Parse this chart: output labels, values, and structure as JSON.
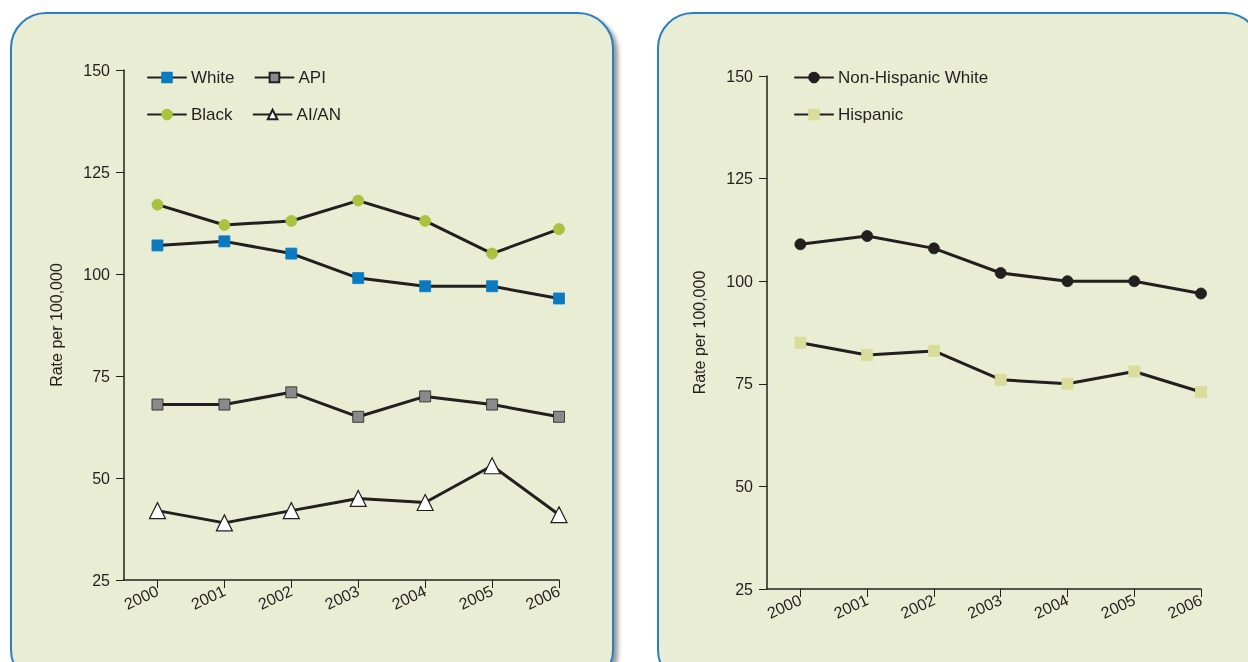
{
  "chart_data": [
    {
      "type": "line",
      "ylabel": "Rate per 100,000",
      "x": [
        2000,
        2001,
        2002,
        2003,
        2004,
        2005,
        2006
      ],
      "xlim": [
        1999.5,
        2006
      ],
      "xticks": [
        2000,
        2001,
        2002,
        2003,
        2004,
        2005,
        2006
      ],
      "ylim": [
        25,
        150
      ],
      "yticks": [
        25,
        50,
        75,
        100,
        125,
        150
      ],
      "grid": false,
      "legend": "top left",
      "line_style": "solid",
      "series": [
        {
          "name": "White",
          "color": "#0a7bc1",
          "marker": "square",
          "values": [
            107,
            108,
            105,
            99,
            97,
            97,
            94
          ]
        },
        {
          "name": "API",
          "color": "#8a8a8a",
          "marker": "square",
          "values": [
            68,
            68,
            71,
            65,
            70,
            68,
            65
          ]
        },
        {
          "name": "Black",
          "color": "#a9c23f",
          "marker": "circle",
          "values": [
            117,
            112,
            113,
            118,
            113,
            105,
            111
          ]
        },
        {
          "name": "AI/AN",
          "color": "#ffffff",
          "marker": "triangle",
          "values": [
            42,
            39,
            42,
            45,
            44,
            53,
            41
          ]
        }
      ]
    },
    {
      "type": "line",
      "ylabel": "Rate per 100,000",
      "x": [
        2000,
        2001,
        2002,
        2003,
        2004,
        2005,
        2006
      ],
      "xlim": [
        1999.5,
        2006
      ],
      "xticks": [
        2000,
        2001,
        2002,
        2003,
        2004,
        2005,
        2006
      ],
      "ylim": [
        25,
        150
      ],
      "yticks": [
        25,
        50,
        75,
        100,
        125,
        150
      ],
      "grid": false,
      "legend": "top left",
      "line_style": "solid",
      "series": [
        {
          "name": "Non-Hispanic White",
          "color": "#231f20",
          "marker": "circle",
          "values": [
            109,
            111,
            108,
            102,
            100,
            100,
            97
          ]
        },
        {
          "name": "Hispanic",
          "color": "#d9dc9a",
          "marker": "square",
          "values": [
            85,
            82,
            83,
            76,
            75,
            78,
            73
          ]
        }
      ]
    }
  ]
}
